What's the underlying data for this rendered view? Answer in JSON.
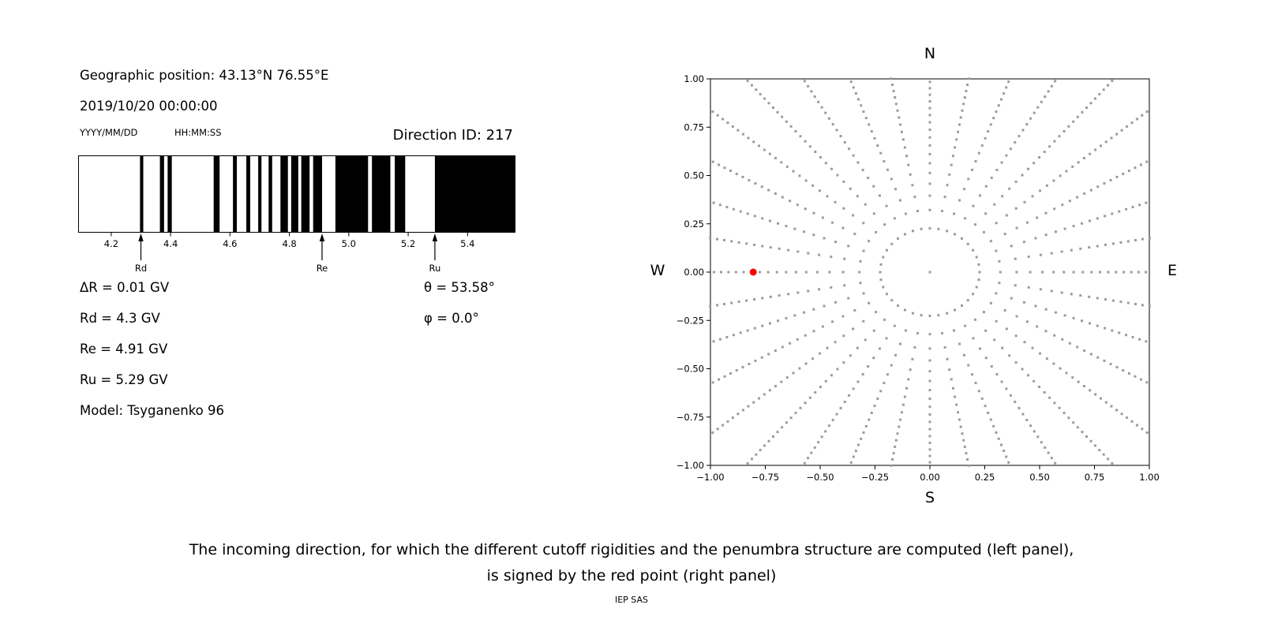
{
  "title_block": {
    "geo_position": "Geographic position: 43.13°N 76.55°E",
    "datetime": "2019/10/20 00:00:00",
    "date_format_label": "YYYY/MM/DD",
    "time_format_label": "HH:MM:SS",
    "direction_id": "Direction ID: 217"
  },
  "parameters": {
    "left": [
      "ΔR = 0.01 GV",
      "Rd = 4.3 GV",
      "Re = 4.91 GV",
      "Ru = 5.29 GV",
      "Model: Tsyganenko 96"
    ],
    "right": [
      "θ = 53.58°",
      "φ = 0.0°"
    ]
  },
  "caption": {
    "line1": "The incoming direction, for which the different cutoff rigidities and the penumbra structure are computed (left panel),",
    "line2": "is signed by the red point (right panel)",
    "credit": "IEP SAS"
  },
  "chart_data": [
    {
      "name": "penumbra-structure",
      "type": "bar",
      "title": "",
      "xlabel": "",
      "ylabel": "",
      "xlim": [
        4.09,
        5.56
      ],
      "xticks": [
        4.2,
        4.4,
        4.6,
        4.8,
        5.0,
        5.2,
        5.4
      ],
      "bar_color": "#000000",
      "background": "#ffffff",
      "forbidden_bands_gv": [
        [
          4.297,
          4.308
        ],
        [
          4.364,
          4.378
        ],
        [
          4.39,
          4.404
        ],
        [
          4.545,
          4.565
        ],
        [
          4.61,
          4.623
        ],
        [
          4.655,
          4.668
        ],
        [
          4.695,
          4.706
        ],
        [
          4.73,
          4.742
        ],
        [
          4.77,
          4.795
        ],
        [
          4.806,
          4.83
        ],
        [
          4.84,
          4.868
        ],
        [
          4.88,
          4.91
        ],
        [
          4.955,
          5.065
        ],
        [
          5.078,
          5.14
        ],
        [
          5.155,
          5.19
        ],
        [
          5.29,
          5.56
        ]
      ],
      "markers": [
        {
          "label": "Rd",
          "value_gv": 4.3
        },
        {
          "label": "Re",
          "value_gv": 4.91
        },
        {
          "label": "Ru",
          "value_gv": 5.29
        }
      ]
    },
    {
      "name": "direction-map",
      "type": "scatter",
      "title": "",
      "xlim": [
        -1,
        1
      ],
      "ylim": [
        -1,
        1
      ],
      "xticks": [
        -1,
        -0.75,
        -0.5,
        -0.25,
        0,
        0.25,
        0.5,
        0.75,
        1
      ],
      "yticks": [
        -1,
        -0.75,
        -0.5,
        -0.25,
        0,
        0.25,
        0.5,
        0.75,
        1
      ],
      "grid": false,
      "compass": {
        "top": "N",
        "bottom": "S",
        "left": "W",
        "right": "E"
      },
      "dot_color": "#9b9b9b",
      "red_color": "#ff0000",
      "azimuth_deg": {
        "start": 0,
        "step": 10,
        "count": 36
      },
      "zenith_deg": [
        0,
        15.09,
        21.4,
        26.33,
        30.45,
        34.15,
        37.52,
        40.66,
        43.63,
        46.41,
        49.07,
        51.63,
        54.12,
        56.52,
        58.85,
        61.13,
        63.37,
        65.55,
        67.71,
        69.83,
        71.92,
        73.98,
        76.03,
        78.06,
        80.07,
        82.07,
        84.06,
        86.05,
        88.02,
        90
      ],
      "radius_scale_deg": 66.6,
      "red_point": {
        "x": -0.805,
        "y": 0.0,
        "zenith_deg": 53.58,
        "azimuth": "W"
      }
    }
  ]
}
